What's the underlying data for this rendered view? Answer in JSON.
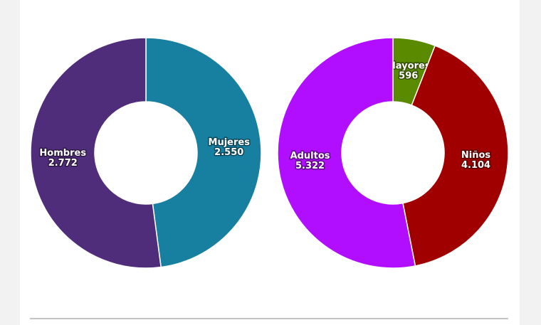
{
  "chart_data": [
    {
      "type": "pie",
      "categories": [
        "Mujeres",
        "Hombres"
      ],
      "values": [
        2550,
        2772
      ],
      "value_labels": [
        "2.550",
        "2.772"
      ],
      "colors": [
        "#1780a1",
        "#4f2d7a"
      ]
    },
    {
      "type": "pie",
      "categories": [
        "Mayores",
        "Niños",
        "Adultos"
      ],
      "values": [
        596,
        4104,
        5322
      ],
      "value_labels": [
        "596",
        "4.104",
        "5.322"
      ],
      "colors": [
        "#5a8a00",
        "#a00000",
        "#b10dff"
      ]
    }
  ]
}
